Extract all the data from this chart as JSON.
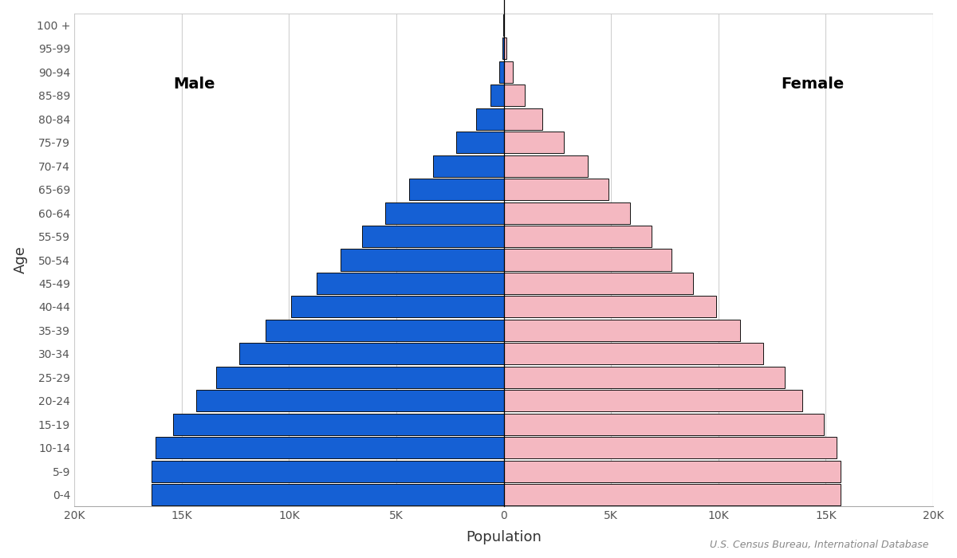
{
  "age_groups": [
    "0-4",
    "5-9",
    "10-14",
    "15-19",
    "20-24",
    "25-29",
    "30-34",
    "35-39",
    "40-44",
    "45-49",
    "50-54",
    "55-59",
    "60-64",
    "65-69",
    "70-74",
    "75-79",
    "80-84",
    "85-89",
    "90-94",
    "95-99",
    "100 +"
  ],
  "male": [
    16400,
    16400,
    16200,
    15400,
    14300,
    13400,
    12300,
    11100,
    9900,
    8700,
    7600,
    6600,
    5500,
    4400,
    3300,
    2200,
    1300,
    600,
    200,
    55,
    12
  ],
  "female": [
    15700,
    15700,
    15500,
    14900,
    13900,
    13100,
    12100,
    11000,
    9900,
    8800,
    7800,
    6900,
    5900,
    4900,
    3900,
    2800,
    1800,
    1000,
    420,
    130,
    30
  ],
  "male_color": "#1560d4",
  "female_color": "#f4b8c1",
  "male_edge_color": "#111111",
  "female_edge_color": "#111111",
  "xlabel": "Population",
  "ylabel": "Age",
  "xlim": 20000,
  "xticks": [
    -20000,
    -15000,
    -10000,
    -5000,
    0,
    5000,
    10000,
    15000,
    20000
  ],
  "xticklabels": [
    "20K",
    "15K",
    "10K",
    "5K",
    "0",
    "5K",
    "10K",
    "15K",
    "20K"
  ],
  "background_color": "#ffffff",
  "grid_color": "#d0d0d0",
  "male_label": "Male",
  "female_label": "Female",
  "source_text": "U.S. Census Bureau, International Database"
}
